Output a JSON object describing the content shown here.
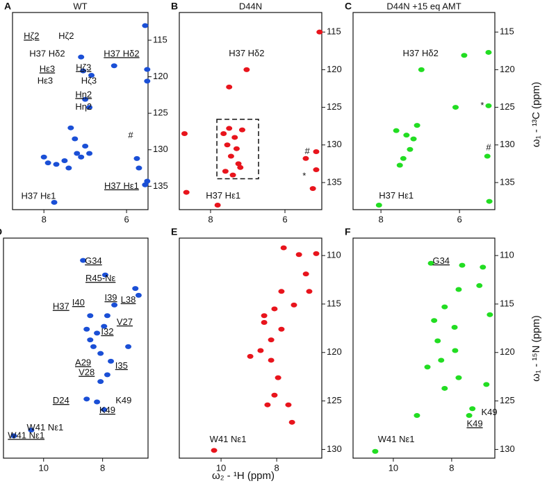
{
  "chart_data": [
    {
      "type": "scatter",
      "panel": "A",
      "title": "WT",
      "xlim": [
        8.76,
        5.48
      ],
      "ylim": [
        138.2,
        111.2
      ],
      "xticks": [
        8,
        6
      ],
      "yticks": [
        115,
        120,
        125,
        130,
        135
      ],
      "series": [
        {
          "color": "#1a4fd6",
          "x": [
            7.1,
            7.05,
            6.3,
            6.85,
            7.0,
            6.9,
            7.35,
            7.25,
            7.0,
            7.2,
            7.5,
            7.7,
            7.9,
            8.0,
            7.4,
            7.1,
            6.9,
            5.75,
            5.7,
            5.55,
            7.75,
            5.55,
            5.5,
            5.5,
            5.5
          ],
          "y": [
            117.3,
            119.2,
            118.5,
            119.8,
            123.1,
            124.2,
            127.0,
            128.5,
            129.5,
            130.5,
            131.5,
            132.0,
            131.8,
            131.0,
            132.5,
            131.0,
            130.5,
            131.2,
            132.5,
            134.8,
            137.2,
            113.0,
            119.0,
            120.6,
            134.3
          ]
        }
      ],
      "annotations": [
        {
          "text": "Hζ2",
          "x": 8.3,
          "y": 114.5,
          "underline": true
        },
        {
          "text": "Hζ2",
          "x": 7.46,
          "y": 114.5,
          "underline": false
        },
        {
          "text": "H37 Hδ2",
          "x": 7.92,
          "y": 116.9,
          "underline": false
        },
        {
          "text": "H37 Hδ2",
          "x": 6.12,
          "y": 116.9,
          "underline": true
        },
        {
          "text": "Hε3",
          "x": 7.92,
          "y": 119.0,
          "underline": true
        },
        {
          "text": "Hε3",
          "x": 7.97,
          "y": 120.6,
          "underline": false
        },
        {
          "text": "Hζ3",
          "x": 7.04,
          "y": 118.8,
          "underline": true
        },
        {
          "text": "Hζ3",
          "x": 6.91,
          "y": 120.6,
          "underline": false
        },
        {
          "text": "Hη2",
          "x": 7.04,
          "y": 122.5,
          "underline": true
        },
        {
          "text": "Hη2",
          "x": 7.04,
          "y": 124.2,
          "underline": false
        },
        {
          "text": "#",
          "x": 5.9,
          "y": 128.1,
          "underline": false
        },
        {
          "text": "H37 Hε1",
          "x": 6.12,
          "y": 135.0,
          "underline": true
        },
        {
          "text": "H37 Hε1",
          "x": 8.13,
          "y": 136.4,
          "underline": false
        }
      ]
    },
    {
      "type": "scatter",
      "panel": "B",
      "title": "D44N",
      "xlim": [
        8.84,
        5.01
      ],
      "ylim": [
        138.6,
        112.4
      ],
      "xticks": [
        8,
        6
      ],
      "yticks": [
        115,
        120,
        125,
        130,
        135
      ],
      "series": [
        {
          "color": "#e8141c",
          "x": [
            7.03,
            7.5,
            7.65,
            7.55,
            7.45,
            7.35,
            7.25,
            7.15,
            7.6,
            7.4,
            7.3,
            7.5,
            7.2,
            7.81,
            8.65,
            8.7,
            5.44,
            5.16,
            5.16,
            5.25,
            5.07
          ],
          "y": [
            120.0,
            122.3,
            128.5,
            130.0,
            131.5,
            129.0,
            132.5,
            128.0,
            133.5,
            134.0,
            130.5,
            127.8,
            133.0,
            138.0,
            136.3,
            128.5,
            131.8,
            130.9,
            133.3,
            135.8,
            115.0
          ]
        }
      ],
      "highlight_box": {
        "x": [
          7.83,
          6.71
        ],
        "y": [
          126.6,
          134.5
        ]
      },
      "annotations": [
        {
          "text": "H37 Hδ2",
          "x": 7.03,
          "y": 117.9,
          "underline": false
        },
        {
          "text": "H37 Hε1",
          "x": 7.66,
          "y": 136.8,
          "underline": false
        },
        {
          "text": "#",
          "x": 5.4,
          "y": 130.9,
          "underline": false
        },
        {
          "text": "*",
          "x": 5.48,
          "y": 134.2,
          "underline": false
        }
      ]
    },
    {
      "type": "scatter",
      "panel": "C",
      "title": "D44N +15 eq AMT",
      "xlim": [
        8.71,
        5.1
      ],
      "ylim": [
        138.6,
        112.4
      ],
      "xticks": [
        8,
        6
      ],
      "yticks": [
        115,
        120,
        125,
        130,
        135
      ],
      "series": [
        {
          "color": "#22dd22",
          "x": [
            6.97,
            7.08,
            7.17,
            7.26,
            7.43,
            7.52,
            7.35,
            7.61,
            8.05,
            5.88,
            6.1,
            5.26,
            5.29,
            5.26,
            5.24
          ],
          "y": [
            120.0,
            127.4,
            129.2,
            130.6,
            131.8,
            132.7,
            128.7,
            128.1,
            138.0,
            118.1,
            125.0,
            124.8,
            131.5,
            117.7,
            137.5
          ]
        }
      ],
      "annotations": [
        {
          "text": "H37 Hδ2",
          "x": 6.99,
          "y": 117.9,
          "underline": false
        },
        {
          "text": "H37 Hε1",
          "x": 7.61,
          "y": 136.8,
          "underline": false
        },
        {
          "text": "*",
          "x": 5.42,
          "y": 124.8,
          "underline": false
        },
        {
          "text": "#",
          "x": 5.26,
          "y": 130.4,
          "underline": false
        }
      ]
    },
    {
      "type": "scatter",
      "panel": "D",
      "xlim": [
        11.36,
        6.46
      ],
      "ylim": [
        130.9,
        108.2
      ],
      "xticks": [
        10,
        8
      ],
      "series": [
        {
          "color": "#1a4fd6",
          "x": [
            8.54,
            8.42,
            8.31,
            8.19,
            8.07,
            7.95,
            7.84,
            8.42,
            7.72,
            7.84,
            8.07,
            8.54,
            7.95,
            7.6,
            6.89,
            6.78,
            7.13,
            8.66,
            7.91,
            11.01,
            10.42,
            8.19
          ],
          "y": [
            117.6,
            118.7,
            119.4,
            118.0,
            120.1,
            117.3,
            116.2,
            116.2,
            120.9,
            122.3,
            123.0,
            124.8,
            125.9,
            115.1,
            113.4,
            114.1,
            119.4,
            110.5,
            112.0,
            128.6,
            128.0,
            125.1
          ]
        }
      ],
      "annotations": [
        {
          "text": "G34",
          "x": 8.31,
          "y": 110.6,
          "underline": true
        },
        {
          "text": "R45-Nε",
          "x": 8.07,
          "y": 112.4,
          "underline": true
        },
        {
          "text": "I39",
          "x": 7.72,
          "y": 114.4,
          "underline": true
        },
        {
          "text": "I40",
          "x": 8.82,
          "y": 114.9,
          "underline": true
        },
        {
          "text": "L38",
          "x": 7.13,
          "y": 114.6,
          "underline": true
        },
        {
          "text": "H37",
          "x": 9.41,
          "y": 115.3,
          "underline": true
        },
        {
          "text": "V27",
          "x": 7.25,
          "y": 116.9,
          "underline": true
        },
        {
          "text": "I32",
          "x": 7.84,
          "y": 117.9,
          "underline": true
        },
        {
          "text": "I35",
          "x": 7.36,
          "y": 121.4,
          "underline": true
        },
        {
          "text": "A29",
          "x": 8.66,
          "y": 121.1,
          "underline": true
        },
        {
          "text": "V28",
          "x": 8.54,
          "y": 122.1,
          "underline": true
        },
        {
          "text": "D24",
          "x": 9.41,
          "y": 125.0,
          "underline": true
        },
        {
          "text": "K49",
          "x": 7.29,
          "y": 125.0,
          "underline": false
        },
        {
          "text": "K49",
          "x": 7.84,
          "y": 126.0,
          "underline": true
        },
        {
          "text": "W41 Nε1",
          "x": 9.95,
          "y": 127.8,
          "underline": false
        },
        {
          "text": "W41 Nε1",
          "x": 10.59,
          "y": 128.6,
          "underline": true
        }
      ]
    },
    {
      "type": "scatter",
      "panel": "E",
      "xlim": [
        11.5,
        6.38
      ],
      "ylim": [
        130.9,
        108.2
      ],
      "xticks": [
        10,
        8
      ],
      "yticks": [
        110,
        115,
        120,
        125,
        130
      ],
      "series": [
        {
          "color": "#e8141c",
          "x": [
            10.25,
            7.2,
            6.58,
            6.95,
            6.83,
            7.83,
            8.08,
            8.45,
            8.2,
            8.58,
            8.2,
            7.95,
            8.08,
            7.58,
            7.45,
            8.45,
            7.83,
            7.38,
            7.75,
            8.95,
            8.33
          ],
          "y": [
            130.1,
            109.9,
            109.8,
            111.9,
            113.7,
            113.7,
            115.5,
            116.9,
            118.7,
            119.8,
            120.8,
            122.6,
            124.4,
            125.4,
            127.2,
            116.2,
            117.6,
            115.1,
            109.2,
            120.4,
            125.4
          ]
        }
      ],
      "annotations": [
        {
          "text": "W41 Nε1",
          "x": 9.75,
          "y": 129.0,
          "underline": false
        }
      ]
    },
    {
      "type": "scatter",
      "panel": "F",
      "xlim": [
        11.38,
        6.52
      ],
      "ylim": [
        130.9,
        108.2
      ],
      "xticks": [
        10,
        8
      ],
      "yticks": [
        110,
        115,
        120,
        125,
        130
      ],
      "series": [
        {
          "color": "#22dd22",
          "x": [
            10.62,
            8.71,
            7.64,
            6.93,
            7.05,
            7.76,
            8.24,
            8.6,
            7.9,
            8.48,
            7.88,
            8.36,
            7.76,
            8.24,
            7.29,
            7.4,
            6.81,
            8.83,
            9.19,
            6.69
          ],
          "y": [
            130.2,
            110.8,
            111.0,
            111.2,
            113.1,
            113.5,
            115.3,
            116.7,
            117.4,
            118.8,
            119.8,
            120.8,
            122.6,
            123.7,
            125.8,
            126.5,
            123.3,
            121.5,
            126.5,
            116.1
          ]
        }
      ],
      "annotations": [
        {
          "text": "G34",
          "x": 8.36,
          "y": 110.6,
          "underline": true
        },
        {
          "text": "K49",
          "x": 6.71,
          "y": 126.2,
          "underline": false
        },
        {
          "text": "K49",
          "x": 7.21,
          "y": 127.4,
          "underline": true
        },
        {
          "text": "W41 Nε1",
          "x": 9.9,
          "y": 129.0,
          "underline": false
        }
      ]
    }
  ],
  "x_label": "ω₂ - ¹H (ppm)",
  "y_label_top": "ω₁ - ¹³C (ppm)",
  "y_label_bottom": "ω₁ - ¹⁵N (ppm)"
}
